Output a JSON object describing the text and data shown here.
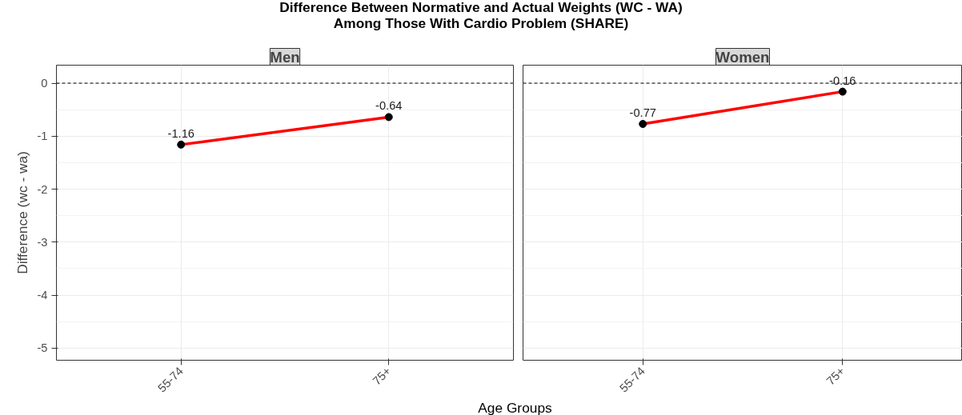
{
  "chart_data": [
    {
      "type": "line",
      "title": "Difference Between Normative and Actual Weights (WC - WA)\nAmong Those With Cardio Problem (SHARE)",
      "subtitle": "Men",
      "xlabel": "Age Groups",
      "ylabel": "Difference (wc - wa)",
      "categories": [
        "55-74",
        "75+"
      ],
      "series": [
        {
          "color": "#ff0000",
          "values": [
            -1.16,
            -0.64
          ]
        }
      ],
      "ylim": [
        -5.23,
        0.34
      ],
      "yticks": [
        -5,
        -4,
        -3,
        -2,
        -1,
        0
      ],
      "grid": true,
      "marker": "circle",
      "line_style": "solid",
      "data_labels": true,
      "ref_lines": [
        {
          "axis": "y",
          "value": 0,
          "color": "#000000",
          "line_style": "dashed"
        }
      ]
    },
    {
      "type": "line",
      "subtitle": "Women",
      "categories": [
        "55-74",
        "75+"
      ],
      "series": [
        {
          "color": "#ff0000",
          "values": [
            -0.77,
            -0.16
          ]
        }
      ],
      "ylim": [
        -5.23,
        0.34
      ],
      "yticks": [
        -5,
        -4,
        -3,
        -2,
        -1,
        0
      ],
      "grid": true,
      "marker": "circle",
      "line_style": "solid",
      "data_labels": true,
      "tick_labels": "x",
      "ref_lines": [
        {
          "axis": "y",
          "value": 0,
          "color": "#000000",
          "line_style": "dashed"
        }
      ]
    }
  ]
}
